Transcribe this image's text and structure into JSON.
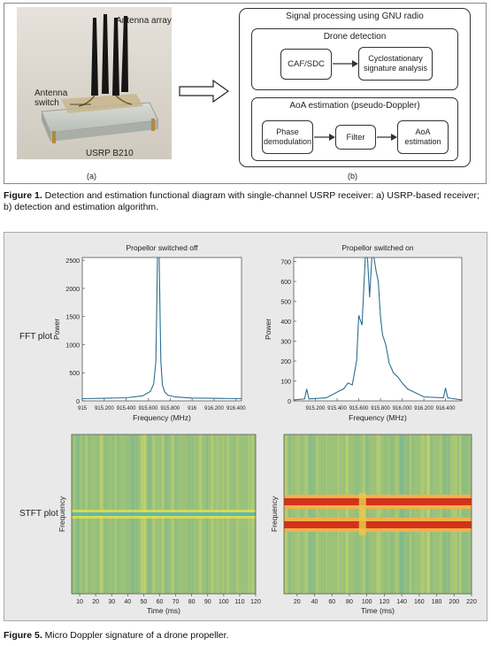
{
  "figure1": {
    "photo": {
      "antenna_label": "Antenna array",
      "switch_label": "Antenna\nswitch",
      "device_label": "USRP B210"
    },
    "diagram": {
      "title": "Signal processing using GNU radio",
      "detection_title": "Drone detection",
      "caf_label": "CAF/SDC",
      "cyclo_label": "Cyclostationary\nsignature analysis",
      "aoa_title": "AoA estimation (pseudo-Doppler)",
      "phase_label": "Phase\ndemodulation",
      "filter_label": "Filter",
      "aoa_est_label": "AoA\nestimation"
    },
    "label_a": "(a)",
    "label_b": "(b)",
    "caption_prefix": "Figure 1.",
    "caption_text": " Detection and estimation functional diagram with single-channel USRP receiver: a) USRP-based receiver; b) detection and estimation algorithm."
  },
  "figure5": {
    "row_fft_label": "FFT plot",
    "row_stft_label": "STFT plot",
    "caption_prefix": "Figure 5.",
    "caption_text": " Micro Doppler signature of a drone propeller."
  },
  "chart_data": [
    {
      "type": "line",
      "title": "Propellor switched off",
      "xlabel": "Frequency (MHz)",
      "ylabel": "Power",
      "xlim": [
        915.0,
        916.45
      ],
      "ylim": [
        0,
        2550
      ],
      "xticks": [
        "915",
        "915.200",
        "915.400",
        "915.600",
        "915.800",
        "916",
        "916.200",
        "916.400"
      ],
      "yticks": [
        "0",
        "500",
        "1000",
        "1500",
        "2000",
        "2500"
      ],
      "x": [
        915.0,
        915.2,
        915.4,
        915.55,
        915.62,
        915.65,
        915.67,
        915.685,
        915.7,
        915.715,
        915.73,
        915.75,
        915.78,
        915.85,
        916.0,
        916.2,
        916.45
      ],
      "y": [
        40,
        45,
        55,
        90,
        170,
        300,
        700,
        2550,
        2550,
        700,
        280,
        160,
        100,
        70,
        50,
        45,
        40
      ]
    },
    {
      "type": "line",
      "title": "Propellor switched on",
      "xlabel": "Frequency (MHz)",
      "ylabel": "Power",
      "xlim": [
        915.0,
        916.55
      ],
      "ylim": [
        0,
        720
      ],
      "xticks": [
        "915.200",
        "915.400",
        "915.600",
        "915.800",
        "916.000",
        "916.200",
        "916.400"
      ],
      "yticks": [
        "0",
        "100",
        "200",
        "300",
        "400",
        "500",
        "600",
        "700"
      ],
      "x": [
        915.0,
        915.1,
        915.12,
        915.14,
        915.3,
        915.42,
        915.46,
        915.5,
        915.54,
        915.58,
        915.6,
        915.63,
        915.66,
        915.68,
        915.7,
        915.72,
        915.74,
        915.76,
        915.78,
        915.8,
        915.82,
        915.85,
        915.88,
        915.92,
        915.96,
        916.0,
        916.05,
        916.2,
        916.38,
        916.4,
        916.42,
        916.55
      ],
      "y": [
        5,
        10,
        60,
        10,
        15,
        50,
        60,
        90,
        80,
        200,
        430,
        380,
        720,
        720,
        520,
        720,
        720,
        650,
        600,
        420,
        330,
        280,
        190,
        140,
        120,
        90,
        60,
        20,
        15,
        65,
        15,
        5
      ]
    },
    {
      "type": "heatmap",
      "title": "",
      "xlabel": "Time (ms)",
      "ylabel": "Frequency",
      "xlim": [
        5,
        120
      ],
      "xticks": [
        "10",
        "20",
        "30",
        "40",
        "50",
        "60",
        "70",
        "80",
        "90",
        "100",
        "110",
        "120"
      ],
      "note_bands": "single cyan band at center frequency"
    },
    {
      "type": "heatmap",
      "title": "",
      "xlabel": "Time (ms)",
      "ylabel": "Frequency",
      "xlim": [
        5,
        220
      ],
      "xticks": [
        "20",
        "40",
        "60",
        "80",
        "100",
        "120",
        "140",
        "160",
        "180",
        "200",
        "220"
      ],
      "note_bands": "two red bands above and below center"
    }
  ]
}
